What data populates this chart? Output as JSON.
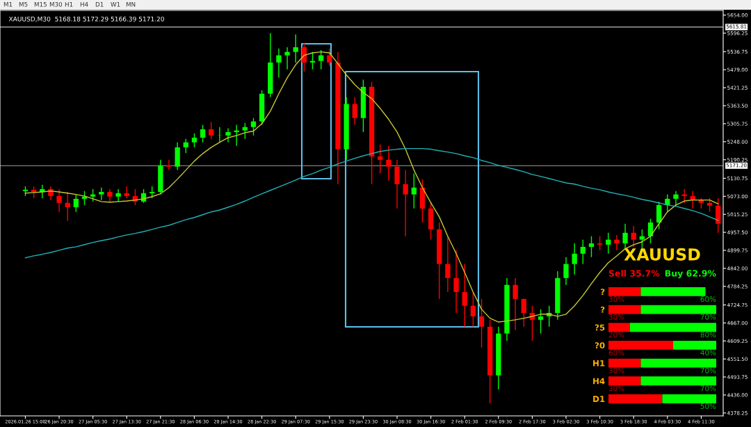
{
  "chart_data": [
    {
      "type": "candlestick",
      "title": "XAUUSD,M30  5168.18 5172.29 5166.39 5171.20",
      "annotations": [
        "M1",
        "M5",
        "M15",
        "M30",
        "H1",
        "H4",
        "D1",
        "W1",
        "MN"
      ],
      "categories": [
        "2026.01.26 15:00",
        null,
        null,
        null,
        "26 Jan 20:30",
        null,
        null,
        null,
        "27 Jan 05:30",
        null,
        null,
        null,
        "27 Jan 13:30",
        null,
        null,
        null,
        "27 Jan 21:30",
        null,
        null,
        null,
        "28 Jan 06:30",
        null,
        null,
        null,
        "28 Jan 14:30",
        null,
        null,
        null,
        "28 Jan 22:30",
        null,
        null,
        null,
        "29 Jan 07:30",
        null,
        null,
        null,
        "29 Jan 15:30",
        null,
        null,
        null,
        "29 Jan 23:30",
        null,
        null,
        null,
        "30 Jan 08:30",
        null,
        null,
        null,
        "30 Jan 16:30",
        null,
        null,
        null,
        "2 Feb 01:30",
        null,
        null,
        null,
        "2 Feb 09:30",
        null,
        null,
        null,
        "2 Feb 17:30",
        null,
        null,
        null,
        "3 Feb 02:30",
        null,
        null,
        null,
        "3 Feb 10:30",
        null,
        null,
        null,
        "3 Feb 18:30",
        null,
        null,
        null,
        "4 Feb 03:30",
        null,
        null,
        null,
        "4 Feb 11:30",
        null,
        null
      ],
      "series": [
        {
          "type": "candlestick",
          "ohlc": [
            [
              5090,
              5105,
              5074,
              5094
            ],
            [
              5094,
              5105,
              5067,
              5087
            ],
            [
              5087,
              5110,
              5067,
              5096
            ],
            [
              5096,
              5105,
              5061,
              5074
            ],
            [
              5074,
              5096,
              5023,
              5052
            ],
            [
              5052,
              5087,
              4994,
              5038
            ],
            [
              5038,
              5079,
              5023,
              5065
            ],
            [
              5065,
              5090,
              5045,
              5072
            ],
            [
              5072,
              5096,
              5056,
              5079
            ],
            [
              5079,
              5101,
              5061,
              5087
            ],
            [
              5087,
              5096,
              5056,
              5072
            ],
            [
              5072,
              5096,
              5056,
              5083
            ],
            [
              5083,
              5105,
              5067,
              5074
            ],
            [
              5074,
              5096,
              5045,
              5056
            ],
            [
              5056,
              5096,
              5052,
              5083
            ],
            [
              5083,
              5105,
              5067,
              5087
            ],
            [
              5087,
              5190,
              5079,
              5172
            ],
            [
              5172,
              5190,
              5157,
              5168
            ],
            [
              5168,
              5246,
              5157,
              5230
            ],
            [
              5230,
              5257,
              5212,
              5246
            ],
            [
              5246,
              5275,
              5230,
              5261
            ],
            [
              5261,
              5302,
              5246,
              5288
            ],
            [
              5288,
              5311,
              5257,
              5268
            ],
            [
              5268,
              5295,
              5246,
              5268
            ],
            [
              5268,
              5291,
              5246,
              5279
            ],
            [
              5279,
              5302,
              5235,
              5284
            ],
            [
              5284,
              5308,
              5257,
              5295
            ],
            [
              5295,
              5324,
              5268,
              5313
            ],
            [
              5313,
              5413,
              5302,
              5402
            ],
            [
              5402,
              5596,
              5391,
              5502
            ],
            [
              5502,
              5547,
              5453,
              5525
            ],
            [
              5525,
              5551,
              5480,
              5536
            ],
            [
              5536,
              5592,
              5502,
              5551
            ],
            [
              5551,
              5565,
              5473,
              5502
            ],
            [
              5502,
              5536,
              5480,
              5507
            ],
            [
              5507,
              5542,
              5480,
              5525
            ],
            [
              5525,
              5547,
              5491,
              5502
            ],
            [
              5502,
              5536,
              5112,
              5224
            ],
            [
              5224,
              5391,
              5190,
              5369
            ],
            [
              5369,
              5391,
              5302,
              5324
            ],
            [
              5324,
              5447,
              5279,
              5424
            ],
            [
              5424,
              5440,
              5112,
              5201
            ],
            [
              5201,
              5239,
              5146,
              5190
            ],
            [
              5190,
              5235,
              5123,
              5168
            ],
            [
              5168,
              5190,
              5034,
              5112
            ],
            [
              5112,
              5157,
              4945,
              5079
            ],
            [
              5079,
              5146,
              5034,
              5101
            ],
            [
              5101,
              5128,
              4989,
              5034
            ],
            [
              5034,
              5056,
              4934,
              4967
            ],
            [
              4967,
              4989,
              4744,
              4856
            ],
            [
              4856,
              4945,
              4766,
              4811
            ],
            [
              4811,
              4900,
              4699,
              4766
            ],
            [
              4766,
              4856,
              4655,
              4722
            ],
            [
              4722,
              4766,
              4655,
              4688
            ],
            [
              4688,
              4744,
              4588,
              4655
            ],
            [
              4655,
              4677,
              4409,
              4499
            ],
            [
              4499,
              4655,
              4454,
              4633
            ],
            [
              4633,
              4811,
              4610,
              4789
            ],
            [
              4789,
              4811,
              4644,
              4744
            ],
            [
              4744,
              4744,
              4655,
              4699
            ],
            [
              4699,
              4722,
              4610,
              4677
            ],
            [
              4677,
              4711,
              4633,
              4688
            ],
            [
              4688,
              4722,
              4655,
              4699
            ],
            [
              4699,
              4833,
              4677,
              4811
            ],
            [
              4811,
              4878,
              4789,
              4856
            ],
            [
              4856,
              4922,
              4822,
              4889
            ],
            [
              4889,
              4934,
              4856,
              4911
            ],
            [
              4911,
              4945,
              4878,
              4922
            ],
            [
              4922,
              4945,
              4900,
              4918
            ],
            [
              4918,
              4956,
              4889,
              4934
            ],
            [
              4934,
              4949,
              4900,
              4922
            ],
            [
              4922,
              4985,
              4905,
              4956
            ],
            [
              4956,
              4978,
              4911,
              4934
            ],
            [
              4934,
              4967,
              4900,
              4945
            ],
            [
              4945,
              5001,
              4922,
              4989
            ],
            [
              4989,
              5056,
              4967,
              5045
            ],
            [
              5045,
              5079,
              5023,
              5065
            ],
            [
              5065,
              5090,
              5043,
              5079
            ],
            [
              5079,
              5096,
              5052,
              5074
            ],
            [
              5074,
              5090,
              5034,
              5061
            ],
            [
              5061,
              5067,
              5034,
              5052
            ],
            [
              5052,
              5067,
              5023,
              5043
            ],
            [
              5043,
              5067,
              4956,
              4985
            ]
          ],
          "colors": [
            "#00ff00",
            "#ff0000",
            "#00ff00",
            "#ff0000",
            "#ff0000",
            "#ff0000",
            "#00ff00",
            "#00ff00",
            "#00ff00",
            "#00ff00",
            "#ff0000",
            "#00ff00",
            "#ff0000",
            "#ff0000",
            "#00ff00",
            "#00ff00",
            "#00ff00",
            "#ff0000",
            "#00ff00",
            "#00ff00",
            "#00ff00",
            "#00ff00",
            "#ff0000",
            "#00ff00",
            "#00ff00",
            "#00ff00",
            "#00ff00",
            "#00ff00",
            "#00ff00",
            "#00ff00",
            "#00ff00",
            "#00ff00",
            "#00ff00",
            "#ff0000",
            "#00ff00",
            "#00ff00",
            "#ff0000",
            "#ff0000",
            "#00ff00",
            "#ff0000",
            "#00ff00",
            "#ff0000",
            "#ff0000",
            "#ff0000",
            "#ff0000",
            "#ff0000",
            "#00ff00",
            "#ff0000",
            "#ff0000",
            "#ff0000",
            "#ff0000",
            "#ff0000",
            "#ff0000",
            "#ff0000",
            "#ff0000",
            "#ff0000",
            "#00ff00",
            "#00ff00",
            "#ff0000",
            "#ff0000",
            "#ff0000",
            "#00ff00",
            "#00ff00",
            "#00ff00",
            "#00ff00",
            "#00ff00",
            "#00ff00",
            "#00ff00",
            "#ff0000",
            "#00ff00",
            "#ff0000",
            "#00ff00",
            "#ff0000",
            "#00ff00",
            "#00ff00",
            "#00ff00",
            "#00ff00",
            "#00ff00",
            "#ff0000",
            "#ff0000",
            "#ff0000",
            "#ff0000",
            "#ff0000"
          ]
        },
        {
          "type": "line",
          "color": "#c8c832",
          "values": [
            5083,
            5085,
            5087,
            5090,
            5087,
            5083,
            5079,
            5074,
            5065,
            5056,
            5054,
            5056,
            5058,
            5061,
            5065,
            5072,
            5081,
            5101,
            5128,
            5157,
            5186,
            5210,
            5230,
            5246,
            5261,
            5268,
            5277,
            5282,
            5306,
            5346,
            5402,
            5453,
            5495,
            5525,
            5533,
            5536,
            5533,
            5498,
            5462,
            5431,
            5406,
            5386,
            5355,
            5320,
            5279,
            5224,
            5157,
            5101,
            5052,
            5007,
            4945,
            4889,
            4829,
            4766,
            4711,
            4682,
            4670,
            4673,
            4677,
            4682,
            4688,
            4695,
            4695,
            4688,
            4695,
            4722,
            4755,
            4793,
            4829,
            4860,
            4882,
            4905,
            4918,
            4927,
            4945,
            4985,
            5023,
            5045,
            5058,
            5061,
            5061,
            5061,
            5049
          ]
        },
        {
          "type": "line",
          "color": "#20b2b8",
          "values": [
            4876,
            4882,
            4887,
            4893,
            4900,
            4907,
            4911,
            4918,
            4925,
            4931,
            4936,
            4943,
            4949,
            4954,
            4960,
            4967,
            4974,
            4980,
            4989,
            4998,
            5005,
            5014,
            5023,
            5029,
            5038,
            5047,
            5058,
            5070,
            5081,
            5092,
            5103,
            5114,
            5125,
            5137,
            5146,
            5157,
            5166,
            5177,
            5186,
            5195,
            5203,
            5210,
            5217,
            5221,
            5224,
            5226,
            5226,
            5226,
            5224,
            5219,
            5215,
            5210,
            5203,
            5197,
            5188,
            5181,
            5172,
            5166,
            5159,
            5152,
            5143,
            5137,
            5130,
            5123,
            5116,
            5112,
            5105,
            5099,
            5094,
            5087,
            5081,
            5076,
            5070,
            5063,
            5058,
            5052,
            5045,
            5041,
            5034,
            5027,
            5018,
            5007,
            4996
          ]
        }
      ],
      "ylim": [
        4369,
        5669
      ],
      "yticks": [
        {
          "value": 4378.25,
          "label": "4378.25"
        },
        {
          "value": 4436,
          "label": "4436.00"
        },
        {
          "value": 4493.75,
          "label": "4493.75"
        },
        {
          "value": 4551.5,
          "label": "4551.50"
        },
        {
          "value": 4609.25,
          "label": "4609.25"
        },
        {
          "value": 4667,
          "label": "4667.00"
        },
        {
          "value": 4724.75,
          "label": "4724.75"
        },
        {
          "value": 4784.25,
          "label": "4784.25"
        },
        {
          "value": 4842,
          "label": "4842.00"
        },
        {
          "value": 4899.75,
          "label": "4899.75"
        },
        {
          "value": 4957.5,
          "label": "4957.50"
        },
        {
          "value": 5015.25,
          "label": "5015.25"
        },
        {
          "value": 5073,
          "label": "5073.00"
        },
        {
          "value": 5130.75,
          "label": "5130.75"
        },
        {
          "value": 5190.25,
          "label": "5190.25"
        },
        {
          "value": 5248,
          "label": "5248.00"
        },
        {
          "value": 5305.75,
          "label": "5305.75"
        },
        {
          "value": 5363.5,
          "label": "5363.50"
        },
        {
          "value": 5421.25,
          "label": "5421.25"
        },
        {
          "value": 5479,
          "label": "5479.00"
        },
        {
          "value": 5536.75,
          "label": "5536.75"
        },
        {
          "value": 5596.25,
          "label": "5596.25"
        },
        {
          "value": 5654,
          "label": "5654.00"
        }
      ],
      "ref_lines": [
        {
          "axis": "y",
          "value": 5615.81,
          "label": "5615.81",
          "color": "#c0c0c0"
        },
        {
          "axis": "y",
          "value": 5171.2,
          "label": "5171.20",
          "color": "#a0a0a0"
        }
      ],
      "grid": false,
      "legend": false
    },
    {
      "type": "bar",
      "orientation": "horizontal",
      "stacked": true,
      "title": "XAUUSD",
      "categories": [
        "?",
        "?",
        "?5",
        "?0",
        "H1",
        "H4",
        "D1"
      ],
      "series": [
        {
          "name": "Sell 35.7%",
          "color": "#ff0000",
          "values": [
            30,
            30,
            20,
            60,
            30,
            30,
            50
          ],
          "value_labels": [
            "30%",
            "30%",
            "20%",
            "60%",
            "30%",
            "30%",
            null
          ]
        },
        {
          "name": "Buy 62.9%",
          "color": "#00ff00",
          "values": [
            60,
            70,
            80,
            40,
            70,
            70,
            50
          ],
          "value_labels": [
            "60%",
            "70%",
            "80%",
            "40%",
            "70%",
            "70%",
            "50%"
          ]
        }
      ],
      "xlim": [
        0,
        100
      ],
      "tick_labels": "y",
      "grid": false,
      "legend": false
    }
  ]
}
